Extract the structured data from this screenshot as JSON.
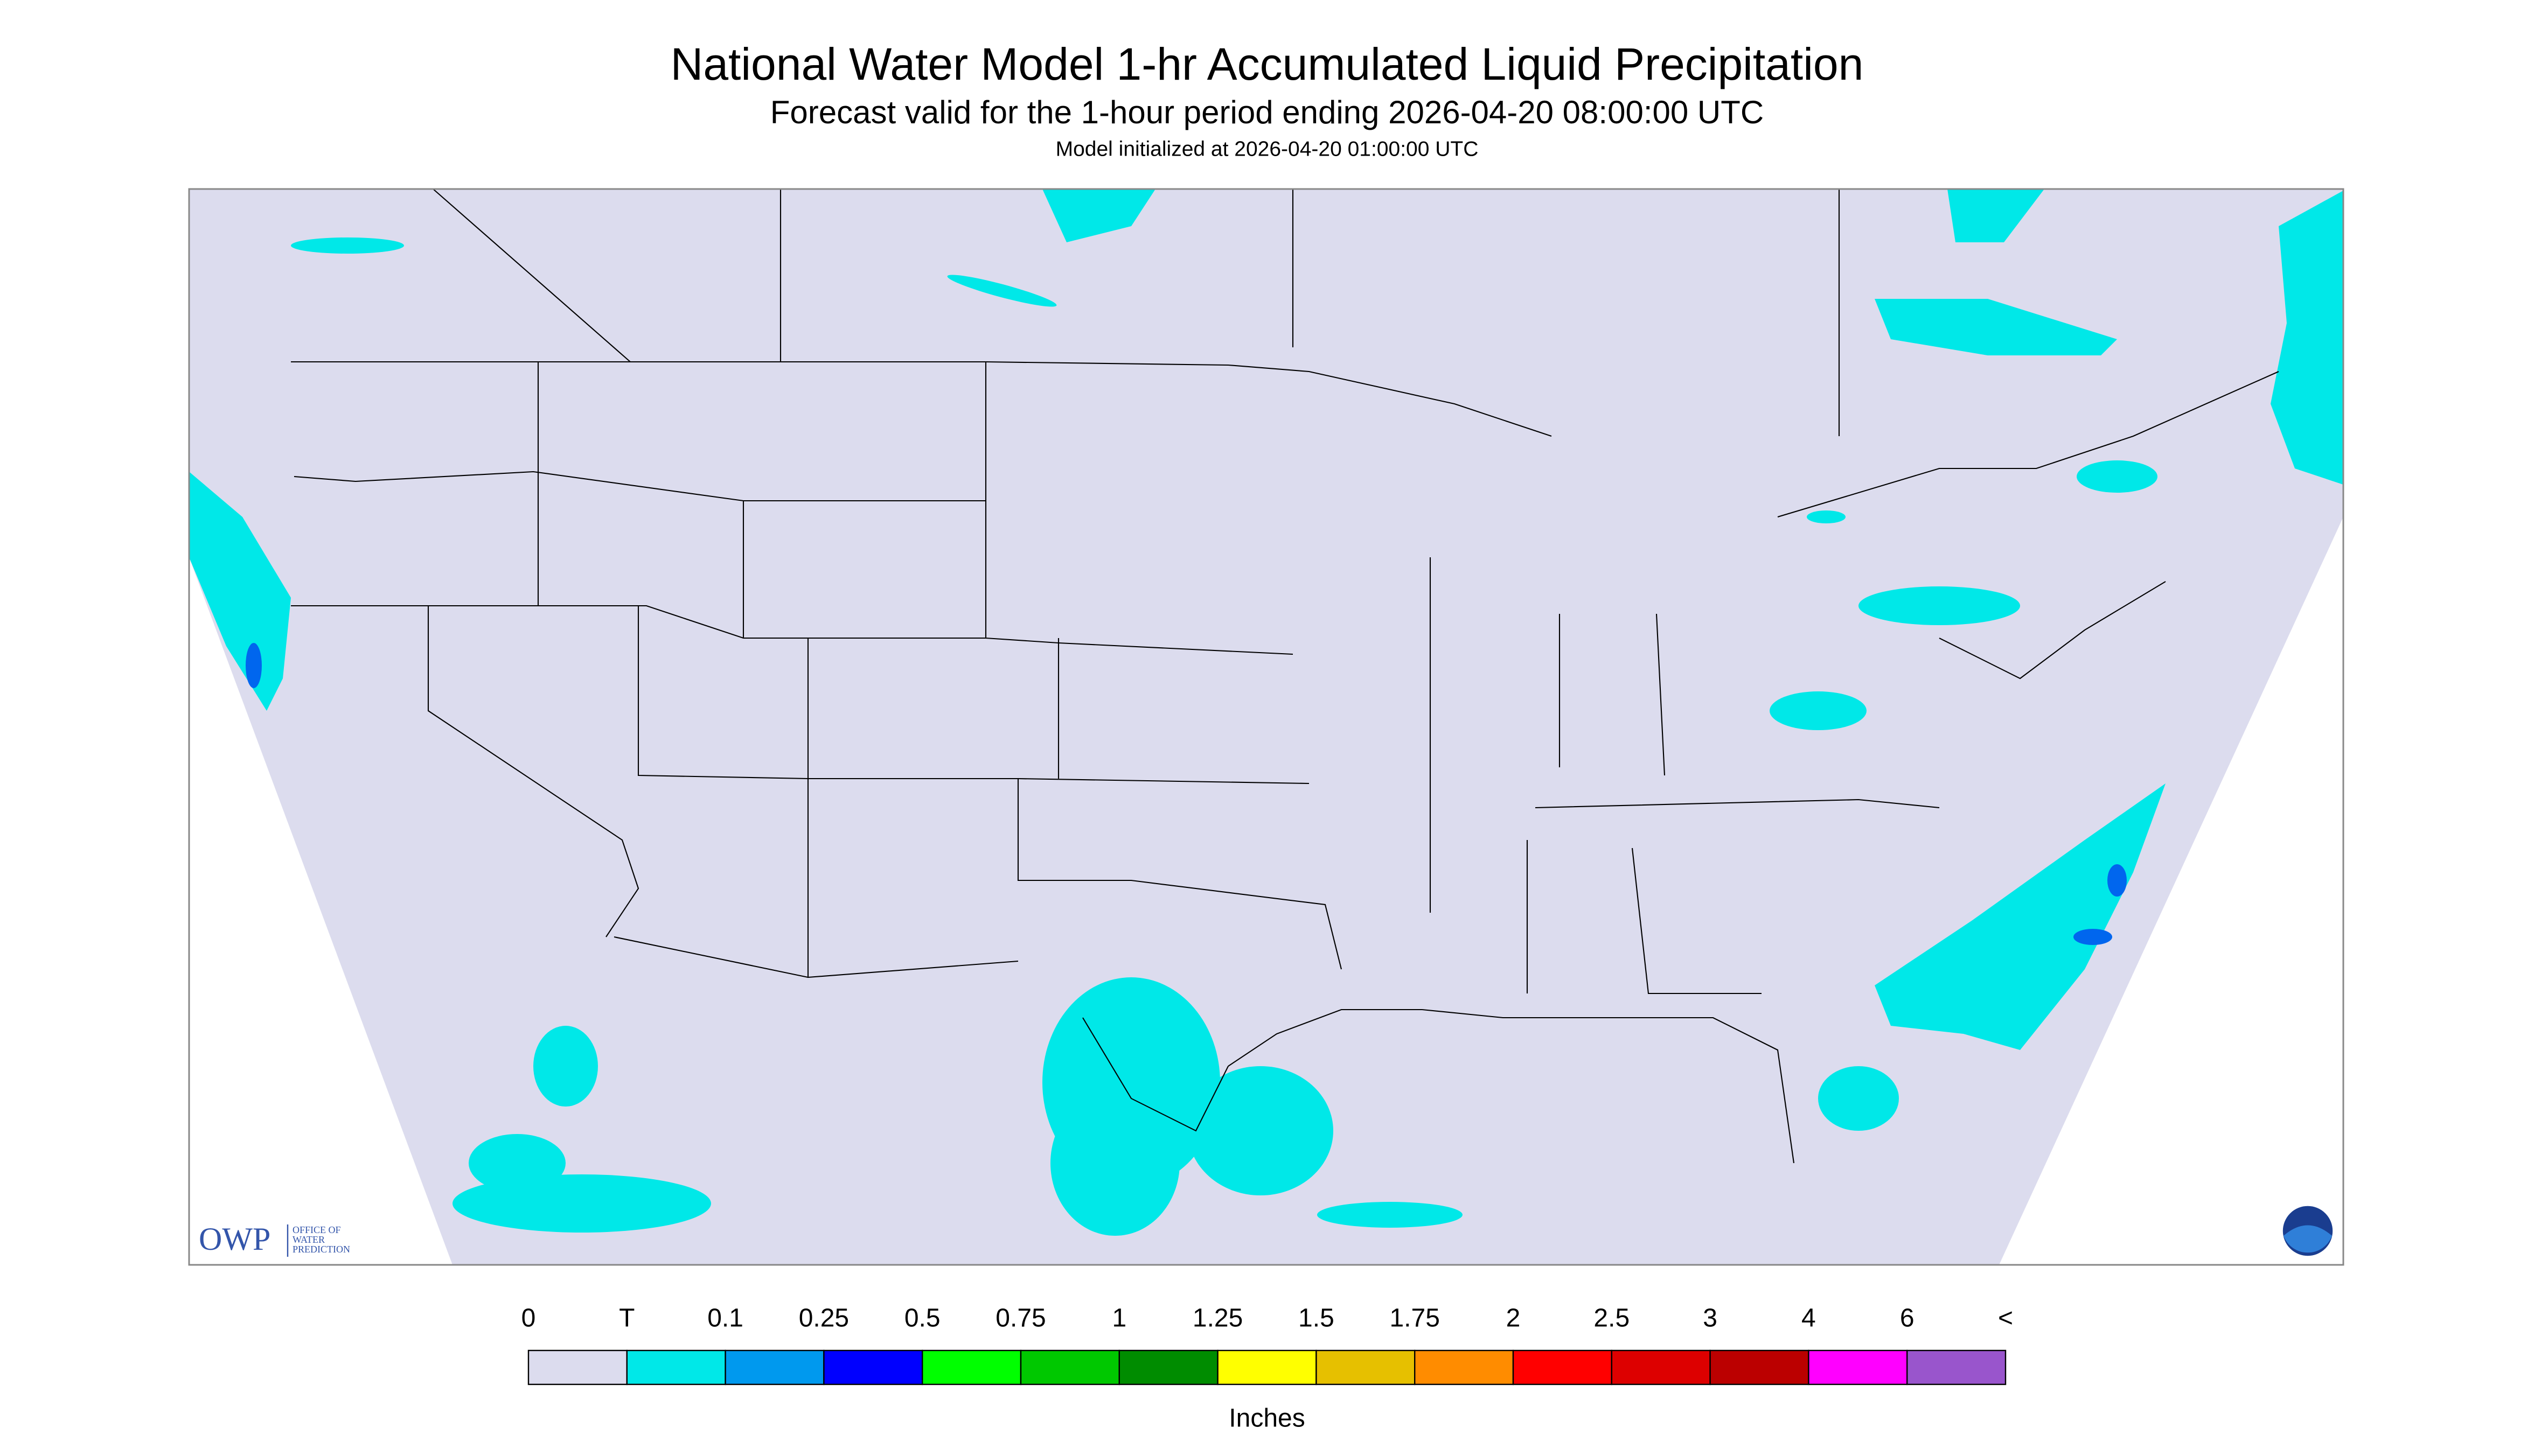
{
  "header": {
    "title": "National Water Model 1-hr Accumulated Liquid Precipitation",
    "subtitle": "Forecast valid for the 1-hour period ending 2026-04-20 08:00:00 UTC",
    "init": "Model initialized at 2026-04-20 01:00:00 UTC"
  },
  "logo": {
    "acronym": "OWP",
    "line1": "OFFICE OF",
    "line2": "WATER",
    "line3": "PREDICTION"
  },
  "legend": {
    "labels": [
      "0",
      "T",
      "0.1",
      "0.25",
      "0.5",
      "0.75",
      "1",
      "1.25",
      "1.5",
      "1.75",
      "2",
      "2.5",
      "3",
      "4",
      "6",
      "<"
    ],
    "colors": [
      "#dcdcee",
      "#00e8e8",
      "#0099ee",
      "#0000ff",
      "#00ff00",
      "#00c800",
      "#008c00",
      "#ffff00",
      "#e6c000",
      "#ff8c00",
      "#ff0000",
      "#dd0000",
      "#bb0000",
      "#ff00ff",
      "#9955cc"
    ],
    "unit": "Inches"
  }
}
